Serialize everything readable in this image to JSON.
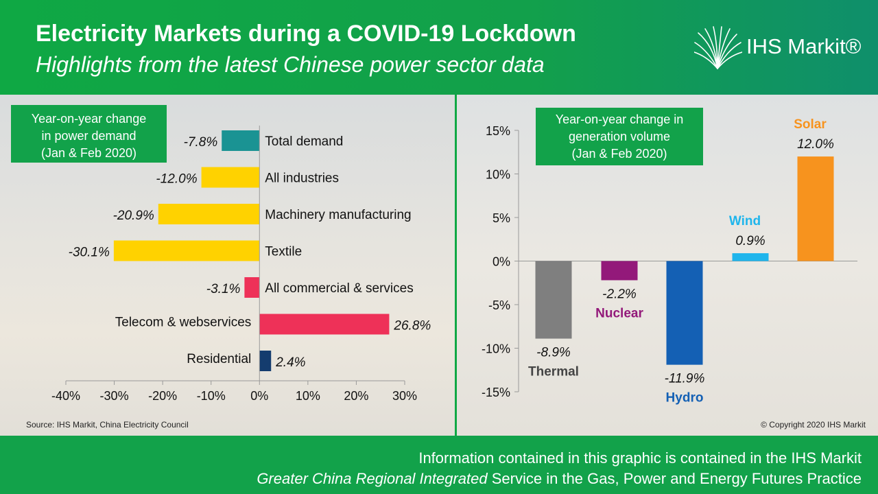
{
  "header": {
    "title": "Electricity Markets during a COVID-19 Lockdown",
    "subtitle": "Highlights from the latest Chinese power sector data",
    "logo_text": "IHS Markit®"
  },
  "colors": {
    "green": "#12a24a",
    "teal": "#1a9393",
    "yellow": "#ffd200",
    "pink": "#ee3158",
    "navy": "#143c6e",
    "thermal": "#7f7f7f",
    "nuclear": "#93197a",
    "hydro": "#1460b4",
    "wind": "#1fb5ec",
    "solar": "#f7931e"
  },
  "chart_data": [
    {
      "type": "bar",
      "orientation": "horizontal",
      "title": "Year-on-year change in power demand (Jan & Feb 2020)",
      "title_lines": [
        "Year-on-year change",
        "in power demand",
        "(Jan & Feb 2020)"
      ],
      "categories": [
        "Total demand",
        "All industries",
        "Machinery manufacturing",
        "Textile",
        "All commercial & services",
        "Telecom & webservices",
        "Residential"
      ],
      "values": [
        -7.8,
        -12.0,
        -20.9,
        -30.1,
        -3.1,
        26.8,
        2.4
      ],
      "value_labels": [
        "-7.8%",
        "-12.0%",
        "-20.9%",
        "-30.1%",
        "-3.1%",
        "26.8%",
        "2.4%"
      ],
      "bar_colors": [
        "#1a9393",
        "#ffd200",
        "#ffd200",
        "#ffd200",
        "#ee3158",
        "#ee3158",
        "#143c6e"
      ],
      "xlim": [
        -40,
        30
      ],
      "xticks": [
        "-40%",
        "-30%",
        "-20%",
        "-10%",
        "0%",
        "10%",
        "20%",
        "30%"
      ],
      "grid": false
    },
    {
      "type": "bar",
      "title": "Year-on-year change in generation volume (Jan & Feb 2020)",
      "title_lines": [
        "Year-on-year change in",
        "generation volume",
        "(Jan & Feb 2020)"
      ],
      "categories": [
        "Thermal",
        "Nuclear",
        "Hydro",
        "Wind",
        "Solar"
      ],
      "values": [
        -8.9,
        -2.2,
        -11.9,
        0.9,
        12.0
      ],
      "value_labels": [
        "-8.9%",
        "-2.2%",
        "-11.9%",
        "0.9%",
        "12.0%"
      ],
      "bar_colors": [
        "#7f7f7f",
        "#93197a",
        "#1460b4",
        "#1fb5ec",
        "#f7931e"
      ],
      "ylim": [
        -15,
        15
      ],
      "yticks": [
        "15%",
        "10%",
        "5%",
        "0%",
        "-5%",
        "-10%",
        "-15%"
      ],
      "grid": false
    }
  ],
  "source": "Source: IHS Markit, China Electricity Council",
  "copyright": "© Copyright 2020 IHS Markit",
  "footer": {
    "line1": "Information contained in this graphic is contained in the IHS Markit",
    "line2_italic": "Greater China Regional Integrated",
    "line2_rest": " Service in the Gas, Power and Energy Futures Practice"
  }
}
